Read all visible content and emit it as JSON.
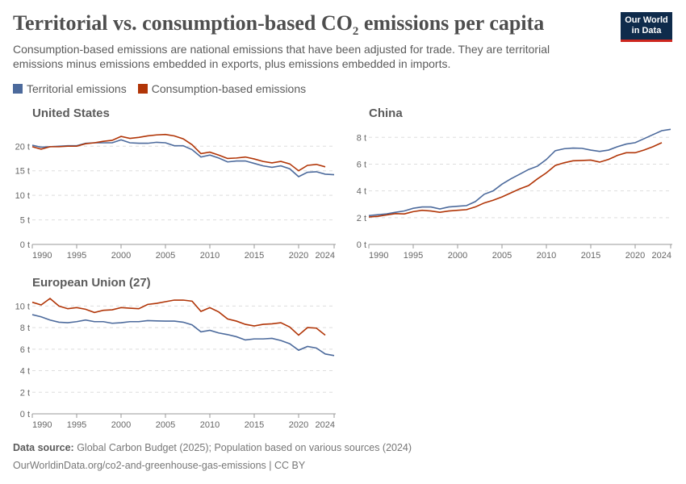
{
  "title": "Territorial vs. consumption-based CO",
  "title_sub": "2",
  "title_end": " emissions per capita",
  "subtitle": "Consumption-based emissions are national emissions that have been adjusted for trade. They are territorial emissions minus emissions embedded in exports, plus emissions embedded in imports.",
  "logo": {
    "line1": "Our World",
    "line2": "in Data"
  },
  "legend": [
    {
      "name": "Territorial emissions",
      "color": "#4c6a9c"
    },
    {
      "name": "Consumption-based emissions",
      "color": "#b13507"
    }
  ],
  "footer": {
    "source_label": "Data source:",
    "source": " Global Carbon Budget (2025); Population based on various sources (2024)",
    "url": "OurWorldinData.org/co2-and-greenhouse-gas-emissions | CC BY"
  },
  "chart_data": [
    {
      "type": "line",
      "title": "United States",
      "x_start": 1990,
      "xticks": [
        "1990",
        "1995",
        "2000",
        "2005",
        "2010",
        "2015",
        "2020",
        "2024"
      ],
      "yticks": [
        "0 t",
        "5 t",
        "10 t",
        "15 t",
        "20 t"
      ],
      "ylim": [
        0,
        23
      ],
      "yvals": [
        0,
        5,
        10,
        15,
        20
      ],
      "series": [
        {
          "name": "Territorial emissions",
          "values": [
            20.2,
            19.8,
            19.9,
            20.0,
            20.1,
            20.1,
            20.6,
            20.7,
            20.7,
            20.7,
            21.3,
            20.7,
            20.6,
            20.6,
            20.8,
            20.7,
            20.1,
            20.1,
            19.3,
            17.8,
            18.2,
            17.6,
            16.8,
            17.0,
            17.0,
            16.5,
            16.0,
            15.7,
            16.0,
            15.4,
            13.8,
            14.7,
            14.8,
            14.3,
            14.2
          ]
        },
        {
          "name": "Consumption-based emissions",
          "values": [
            19.9,
            19.4,
            19.9,
            19.9,
            20.0,
            20.0,
            20.5,
            20.7,
            21.0,
            21.2,
            22.0,
            21.6,
            21.8,
            22.1,
            22.3,
            22.4,
            22.1,
            21.5,
            20.3,
            18.5,
            18.8,
            18.2,
            17.5,
            17.6,
            17.8,
            17.4,
            16.9,
            16.6,
            16.9,
            16.4,
            15.0,
            16.1,
            16.3,
            15.8
          ]
        }
      ]
    },
    {
      "type": "line",
      "title": "China",
      "x_start": 1990,
      "xticks": [
        "1990",
        "1995",
        "2000",
        "2005",
        "2010",
        "2015",
        "2020",
        "2024"
      ],
      "yticks": [
        "0 t",
        "2 t",
        "4 t",
        "6 t",
        "8 t"
      ],
      "ylim": [
        0,
        8.8
      ],
      "yvals": [
        0,
        2,
        4,
        6,
        8
      ],
      "series": [
        {
          "name": "Territorial emissions",
          "values": [
            2.15,
            2.22,
            2.28,
            2.4,
            2.5,
            2.7,
            2.8,
            2.8,
            2.65,
            2.8,
            2.85,
            2.9,
            3.2,
            3.75,
            4.0,
            4.5,
            4.9,
            5.25,
            5.6,
            5.85,
            6.35,
            7.0,
            7.15,
            7.2,
            7.18,
            7.05,
            6.95,
            7.05,
            7.3,
            7.5,
            7.6,
            7.9,
            8.2,
            8.5,
            8.6
          ]
        },
        {
          "name": "Consumption-based emissions",
          "values": [
            2.05,
            2.1,
            2.2,
            2.3,
            2.28,
            2.45,
            2.55,
            2.5,
            2.4,
            2.5,
            2.55,
            2.6,
            2.8,
            3.1,
            3.3,
            3.55,
            3.85,
            4.15,
            4.4,
            4.9,
            5.35,
            5.9,
            6.1,
            6.25,
            6.27,
            6.3,
            6.15,
            6.35,
            6.65,
            6.85,
            6.85,
            7.05,
            7.3,
            7.6
          ]
        }
      ]
    },
    {
      "type": "line",
      "title": "European Union (27)",
      "x_start": 1990,
      "xticks": [
        "1990",
        "1995",
        "2000",
        "2005",
        "2010",
        "2015",
        "2020",
        "2024"
      ],
      "yticks": [
        "0 t",
        "2 t",
        "4 t",
        "6 t",
        "8 t",
        "10 t"
      ],
      "ylim": [
        0,
        11
      ],
      "yvals": [
        0,
        2,
        4,
        6,
        8,
        10
      ],
      "series": [
        {
          "name": "Territorial emissions",
          "values": [
            9.2,
            9.0,
            8.7,
            8.5,
            8.45,
            8.55,
            8.7,
            8.55,
            8.55,
            8.4,
            8.45,
            8.55,
            8.55,
            8.65,
            8.62,
            8.6,
            8.6,
            8.5,
            8.25,
            7.6,
            7.75,
            7.5,
            7.35,
            7.15,
            6.85,
            6.95,
            6.95,
            7.0,
            6.8,
            6.5,
            5.9,
            6.25,
            6.1,
            5.55,
            5.4
          ]
        },
        {
          "name": "Consumption-based emissions",
          "values": [
            10.35,
            10.1,
            10.7,
            10.0,
            9.75,
            9.85,
            9.7,
            9.4,
            9.6,
            9.65,
            9.85,
            9.8,
            9.75,
            10.15,
            10.25,
            10.4,
            10.55,
            10.55,
            10.45,
            9.5,
            9.85,
            9.45,
            8.8,
            8.6,
            8.3,
            8.15,
            8.3,
            8.35,
            8.45,
            8.05,
            7.3,
            8.0,
            7.95,
            7.3
          ]
        }
      ]
    }
  ]
}
